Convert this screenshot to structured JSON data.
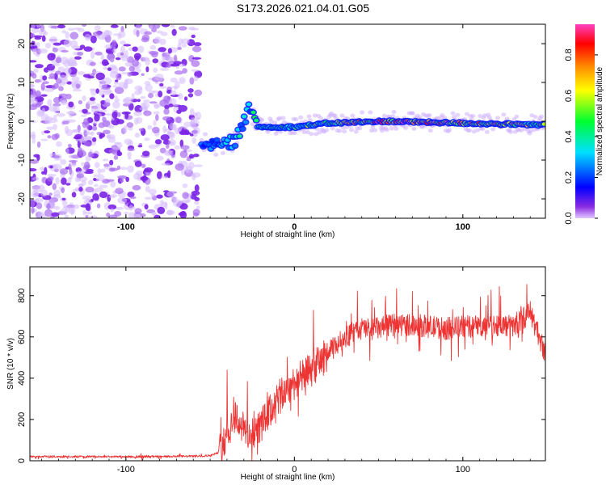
{
  "figure_title": "S173.2026.021.04.01.G05",
  "chart_data": [
    {
      "type": "heatmap",
      "xlabel": "Height of straight line (km)",
      "ylabel": "Frequency (Hz)",
      "xlim": [
        -157,
        149
      ],
      "ylim": [
        -25,
        25
      ],
      "xticks": [
        -100,
        0,
        100
      ],
      "yticks": [
        -20,
        -10,
        0,
        10,
        20
      ],
      "colorbar": {
        "label": "Normalized spectral amplitude",
        "range": [
          0.0,
          0.95
        ],
        "ticks": [
          0.0,
          0.2,
          0.4,
          0.6,
          0.8
        ],
        "colors": [
          "#e0c8ff",
          "#8a2be2",
          "#0000ff",
          "#00e0ff",
          "#00ff30",
          "#ffff00",
          "#ff8c00",
          "#ff0000",
          "#ff40c0"
        ]
      },
      "noise_region": {
        "x": [
          -157,
          -57
        ],
        "y": [
          -25,
          25
        ]
      },
      "ridge": [
        {
          "x": -55,
          "y": -5,
          "amplitude": 0.25
        },
        {
          "x": -45,
          "y": -6.5,
          "amplitude": 0.3
        },
        {
          "x": -35,
          "y": -5,
          "amplitude": 0.35
        },
        {
          "x": -27,
          "y": 3,
          "amplitude": 0.4
        },
        {
          "x": -20,
          "y": -1.5,
          "amplitude": 0.45
        },
        {
          "x": 0,
          "y": -1.5,
          "amplitude": 0.5
        },
        {
          "x": 20,
          "y": -0.5,
          "amplitude": 0.55
        },
        {
          "x": 55,
          "y": 0,
          "amplitude": 0.9
        },
        {
          "x": 100,
          "y": -0.5,
          "amplitude": 0.8
        },
        {
          "x": 149,
          "y": -1,
          "amplitude": 0.6
        }
      ]
    },
    {
      "type": "line",
      "xlabel": "Height of straight line (km)",
      "ylabel": "SNR (10 * v/v)",
      "xlim": [
        -157,
        149
      ],
      "ylim": [
        0,
        940
      ],
      "xticks": [
        -100,
        0,
        100
      ],
      "yticks": [
        0,
        200,
        400,
        600,
        800
      ],
      "color": "#ee3333",
      "x": [
        -157,
        -140,
        -120,
        -100,
        -80,
        -60,
        -50,
        -45,
        -40,
        -35,
        -30,
        -25,
        -20,
        -15,
        -10,
        -5,
        0,
        10,
        20,
        30,
        40,
        50,
        60,
        70,
        80,
        90,
        100,
        110,
        120,
        130,
        140,
        149
      ],
      "y": [
        20,
        20,
        20,
        20,
        20,
        22,
        25,
        40,
        130,
        220,
        150,
        120,
        170,
        230,
        300,
        340,
        380,
        440,
        520,
        600,
        640,
        640,
        660,
        660,
        650,
        640,
        650,
        650,
        660,
        650,
        720,
        520
      ]
    }
  ]
}
